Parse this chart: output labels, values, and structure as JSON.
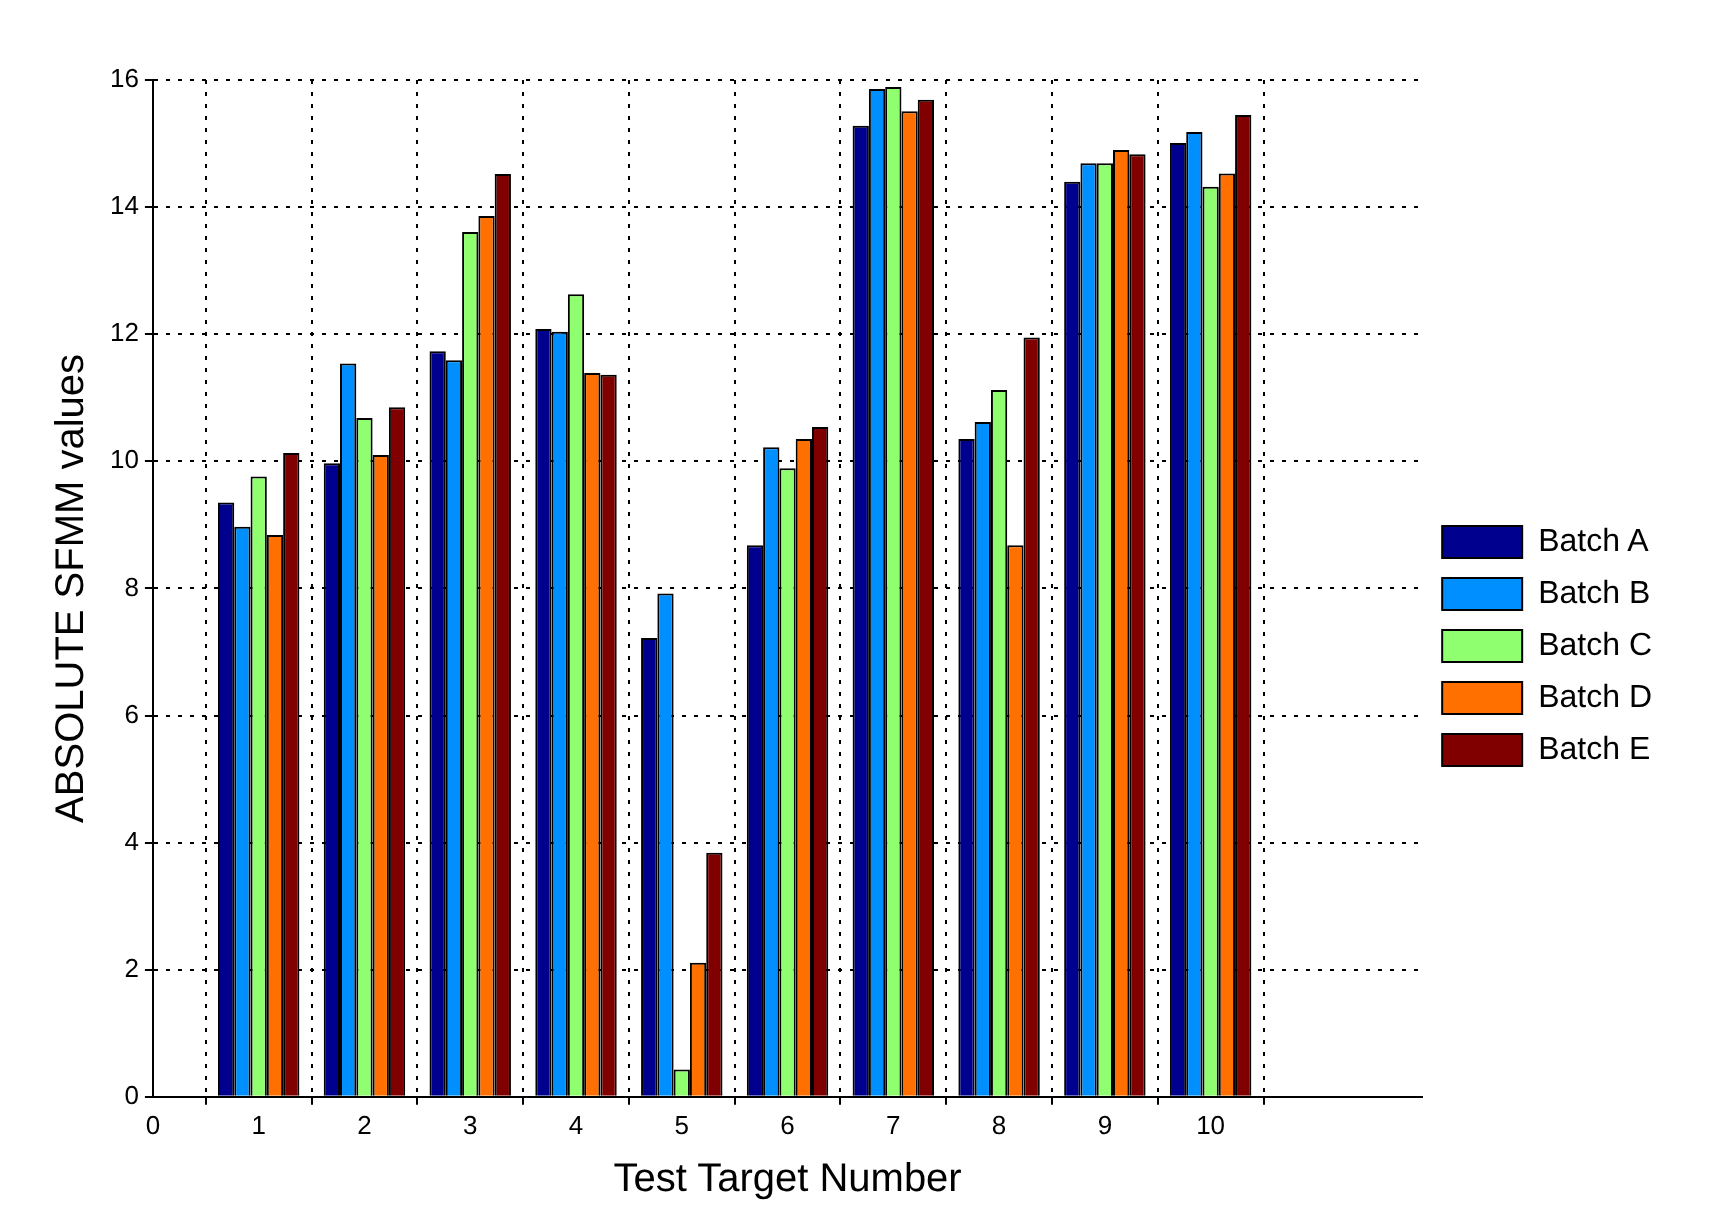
{
  "chart_data": {
    "type": "bar",
    "xlabel": "Test Target Number",
    "ylabel": "ABSOLUTE SFMM values",
    "x": [
      1,
      2,
      3,
      4,
      5,
      6,
      7,
      8,
      9,
      10
    ],
    "series": [
      {
        "name": "Batch A",
        "color": "#00008f",
        "values": [
          9.35,
          9.97,
          11.73,
          12.08,
          7.22,
          8.68,
          15.28,
          10.35,
          14.4,
          15.01
        ]
      },
      {
        "name": "Batch B",
        "color": "#008fff",
        "values": [
          8.97,
          11.54,
          11.59,
          12.04,
          7.92,
          10.22,
          15.86,
          10.62,
          14.69,
          15.18
        ]
      },
      {
        "name": "Batch C",
        "color": "#8fff70",
        "values": [
          9.76,
          10.68,
          13.61,
          12.63,
          0.43,
          9.89,
          15.89,
          11.12,
          14.69,
          14.32
        ]
      },
      {
        "name": "Batch D",
        "color": "#ff7000",
        "values": [
          8.84,
          10.1,
          13.86,
          11.39,
          2.11,
          10.35,
          15.51,
          8.68,
          14.9,
          14.53
        ]
      },
      {
        "name": "Batch E",
        "color": "#800000",
        "values": [
          10.13,
          10.85,
          14.52,
          11.36,
          3.84,
          10.54,
          15.69,
          11.95,
          14.83,
          15.45
        ]
      }
    ],
    "xlim": [
      0,
      12
    ],
    "xticks": [
      0,
      1,
      2,
      3,
      4,
      5,
      6,
      7,
      8,
      9,
      10
    ],
    "ylim": [
      0,
      16
    ],
    "yticks": [
      0,
      2,
      4,
      6,
      8,
      10,
      12,
      14,
      16
    ],
    "grid": true,
    "legend": "right"
  }
}
